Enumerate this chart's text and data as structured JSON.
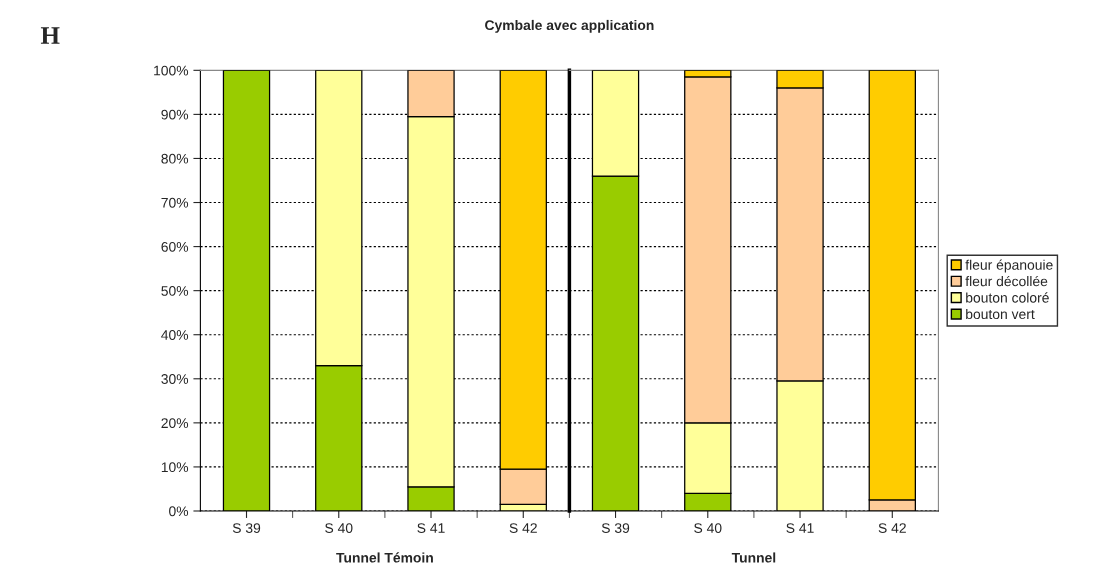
{
  "chart_data": [
    {
      "type": "bar",
      "title": "Cymbale avec application",
      "xlabel": "Tunnel Témoin",
      "stacked": true,
      "categories": [
        "S 39",
        "S 40",
        "S 41",
        "S 42"
      ],
      "series": [
        {
          "color": "#99cc00",
          "values": [
            100,
            33,
            5.5,
            0
          ]
        },
        {
          "color": "#ffff99",
          "values": [
            0,
            67,
            84,
            1.5
          ]
        },
        {
          "color": "#ffcc99",
          "values": [
            0,
            0,
            10.5,
            8
          ]
        },
        {
          "color": "#ffcc00",
          "values": [
            0,
            0,
            0,
            90.5
          ]
        }
      ],
      "ylim": [
        0,
        100
      ],
      "yticks": [
        {
          "value": 0,
          "label": "0%"
        },
        {
          "value": 10,
          "label": "10%"
        },
        {
          "value": 20,
          "label": "20%"
        },
        {
          "value": 30,
          "label": "30%"
        },
        {
          "value": 40,
          "label": "40%"
        },
        {
          "value": 50,
          "label": "50%"
        },
        {
          "value": 60,
          "label": "60%"
        },
        {
          "value": 70,
          "label": "70%"
        },
        {
          "value": 80,
          "label": "80%"
        },
        {
          "value": 90,
          "label": "90%"
        },
        {
          "value": 100,
          "label": "100%"
        }
      ],
      "grid": "y",
      "annotations": [
        "H"
      ]
    },
    {
      "type": "bar",
      "xlabel": "Tunnel",
      "stacked": true,
      "categories": [
        "S 39",
        "S 40",
        "S 41",
        "S 42"
      ],
      "series": [
        {
          "name": "bouton vert",
          "color": "#99cc00",
          "values": [
            76,
            4,
            0,
            0
          ]
        },
        {
          "name": "bouton coloré",
          "color": "#ffff99",
          "values": [
            24,
            16,
            29.5,
            0
          ]
        },
        {
          "name": "fleur décollée",
          "color": "#ffcc99",
          "values": [
            0,
            78.5,
            66.5,
            2.5
          ]
        },
        {
          "name": "fleur épanouie",
          "color": "#ffcc00",
          "values": [
            0,
            1.5,
            4,
            97.5
          ]
        }
      ],
      "ylim": [
        0,
        100
      ],
      "yticks": [
        0,
        10,
        20,
        30,
        40,
        50,
        60,
        70,
        80,
        90,
        100
      ],
      "tick_labels": "x",
      "grid": "y",
      "legend": "right"
    }
  ]
}
